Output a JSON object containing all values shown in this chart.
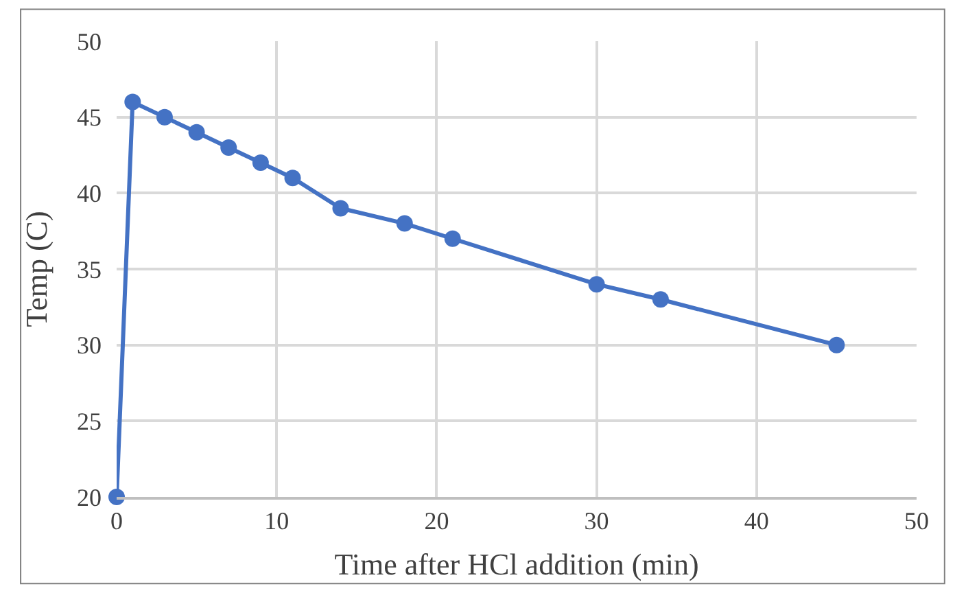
{
  "chart_data": {
    "type": "line",
    "xlabel": "Time after HCl addition (min)",
    "ylabel": "Temp (C)",
    "x": [
      0,
      1,
      3,
      5,
      7,
      9,
      11,
      14,
      18,
      21,
      30,
      34,
      45
    ],
    "series": [
      {
        "color": "#4472c4",
        "values": [
          20,
          46,
          45,
          44,
          43,
          42,
          41,
          39,
          38,
          37,
          34,
          33,
          30
        ]
      }
    ],
    "xlim": [
      0,
      50
    ],
    "xticks": [
      0,
      10,
      20,
      30,
      40,
      50
    ],
    "ylim": [
      20,
      50
    ],
    "yticks": [
      20,
      25,
      30,
      35,
      40,
      45,
      50
    ],
    "grid": true,
    "legend": false,
    "marker": "circle",
    "line_style": "solid"
  }
}
